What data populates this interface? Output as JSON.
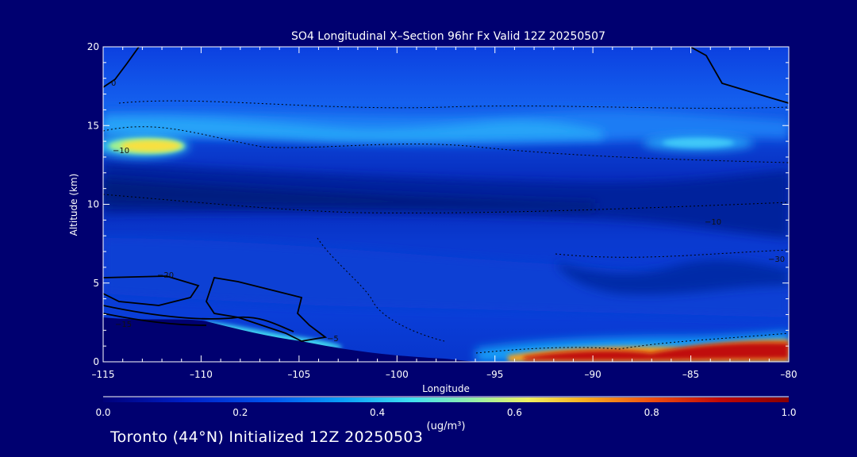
{
  "chart_data": {
    "type": "heatmap",
    "title": "SO4 Longitudinal X–Section 96hr  Fx Valid 12Z 20250507",
    "xlabel": "Longitude",
    "ylabel": "Altitude (km)",
    "xlim": [
      -115,
      -80
    ],
    "ylim": [
      0,
      20
    ],
    "xticks": [
      "–115",
      "–110",
      "–105",
      "–100",
      "–95",
      "–90",
      "–85",
      "–80"
    ],
    "xtick_values": [
      -115,
      -110,
      -105,
      -100,
      -95,
      -90,
      -85,
      -80
    ],
    "yticks": [
      "0",
      "5",
      "10",
      "15",
      "20"
    ],
    "ytick_values": [
      0,
      5,
      10,
      15,
      20
    ],
    "colorbar": {
      "ticks": [
        "0.0",
        "0.2",
        "0.4",
        "0.6",
        "0.8",
        "1.0"
      ],
      "tick_values": [
        0.0,
        0.2,
        0.4,
        0.6,
        0.8,
        1.0
      ],
      "unit": "(ug/m³)",
      "range": [
        0.0,
        1.0
      ]
    },
    "contour_labels": [
      "0",
      "−10",
      "−15",
      "−20",
      "−5",
      "−30",
      "−10"
    ],
    "features": [
      {
        "lon": [
          -115,
          -110
        ],
        "alt": [
          13.0,
          14.0
        ],
        "value": 0.6
      },
      {
        "lon": [
          -115,
          -80
        ],
        "alt": [
          14.5,
          16.0
        ],
        "value": 0.3
      },
      {
        "lon": [
          -86,
          -83
        ],
        "alt": [
          13.5,
          14.2
        ],
        "value": 0.3
      },
      {
        "lon": [
          -94,
          -80
        ],
        "alt": [
          0.2,
          1.2
        ],
        "value": 0.9
      },
      {
        "lon": [
          -108,
          -103
        ],
        "alt": [
          1.0,
          2.0
        ],
        "value": 0.35
      },
      {
        "lon": [
          -115,
          -80
        ],
        "alt": [
          10.0,
          12.0
        ],
        "value": 0.05
      }
    ]
  },
  "footer": {
    "caption": "Toronto (44°N) Initialized 12Z 20250503"
  },
  "colors": {
    "background": "#000070",
    "field_base": "#0844e0"
  }
}
